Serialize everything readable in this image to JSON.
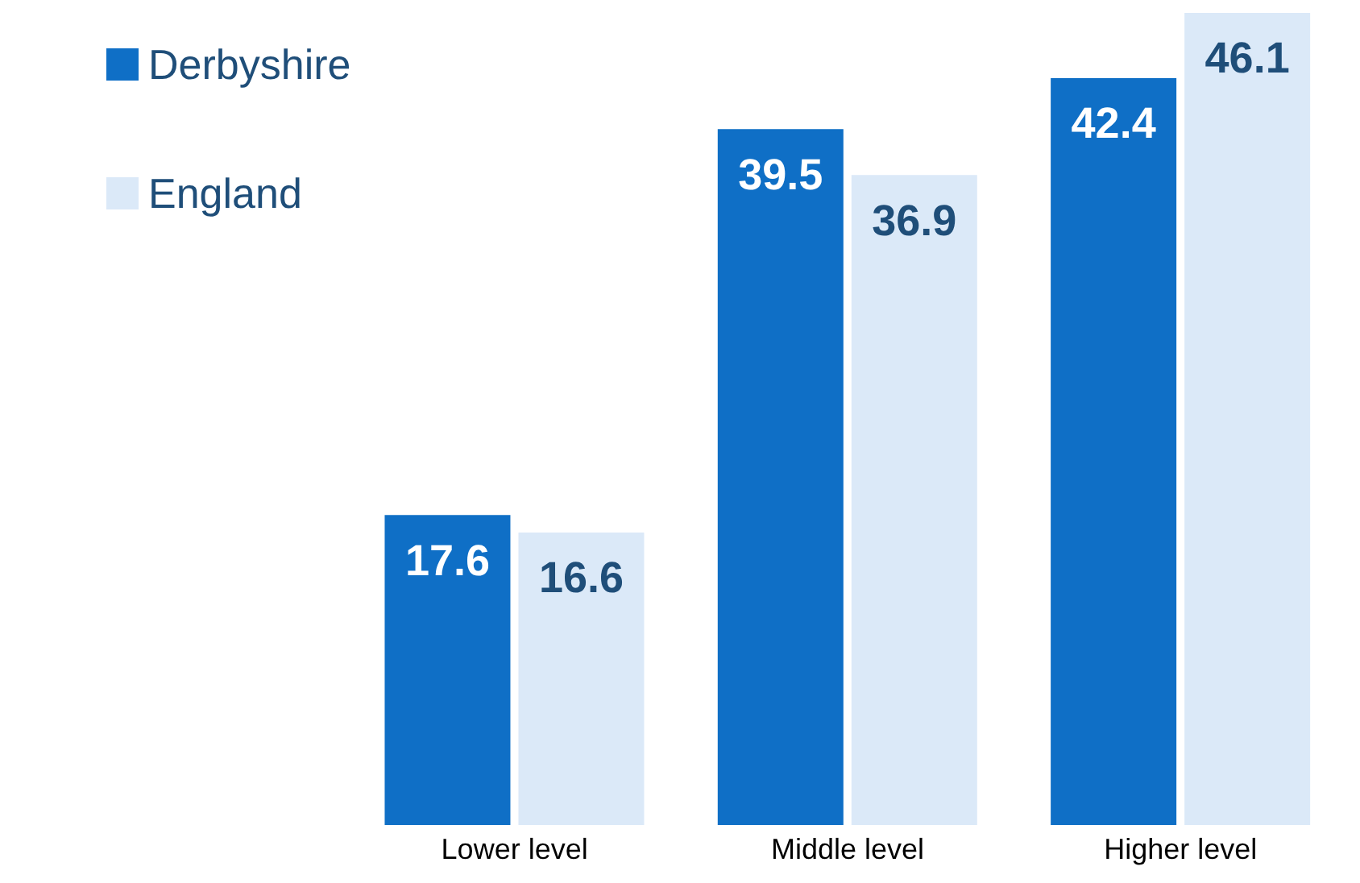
{
  "chart_data": {
    "type": "bar",
    "categories": [
      "Lower level",
      "Middle level",
      "Higher level"
    ],
    "series": [
      {
        "name": "Derbyshire",
        "color": "#0f6fc6",
        "values": [
          17.6,
          39.5,
          42.4
        ]
      },
      {
        "name": "England",
        "color": "#dbe9f8",
        "values": [
          16.6,
          36.9,
          46.1
        ]
      }
    ],
    "data_labels": true,
    "legend": "top left",
    "grid": false
  }
}
